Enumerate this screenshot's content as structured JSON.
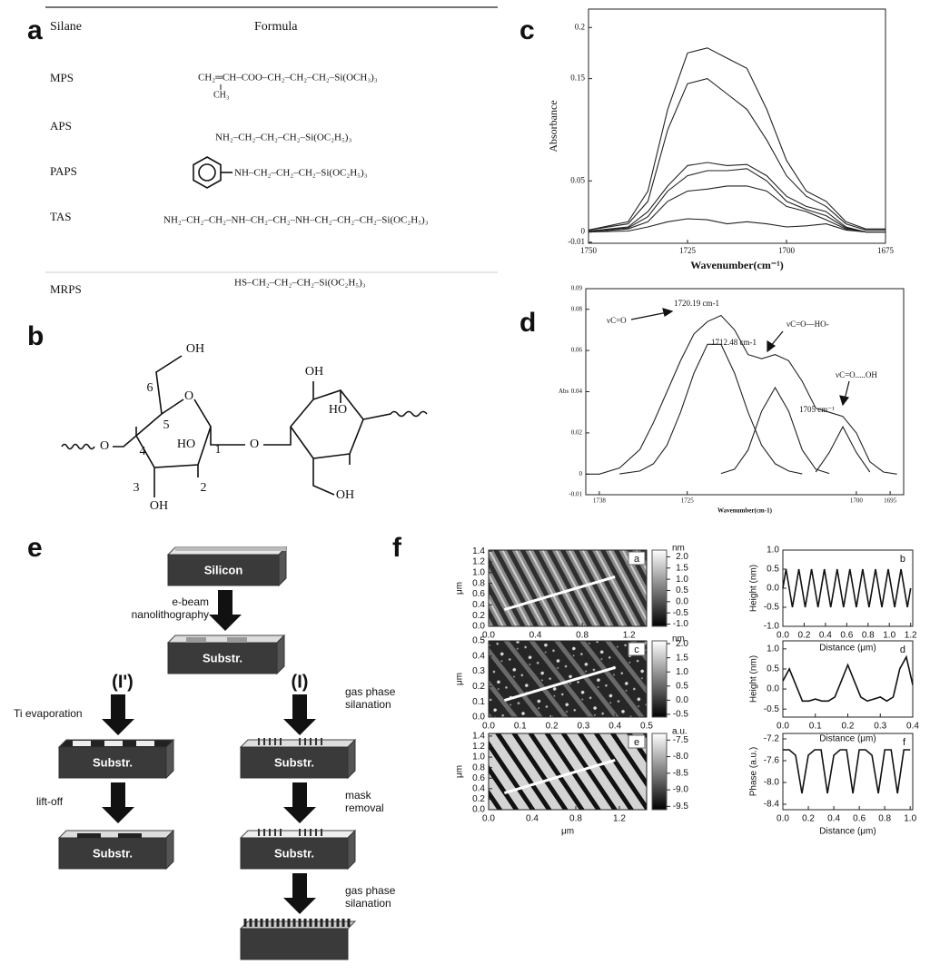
{
  "panel_labels": [
    "a",
    "b",
    "c",
    "d",
    "e",
    "f"
  ],
  "table": {
    "headers": [
      "Silane",
      "Formula"
    ],
    "rows": [
      [
        "MPS",
        "CH₂═CH–COO–CH₂–CH₂–CH₂–Si(OCH₃)₃"
      ],
      [
        "APS",
        "NH₂–CH₂–CH₂–CH₂–Si(OC₂H₅)₃"
      ],
      [
        "PAPS",
        "NH–CH₂–CH₂–CH₂–Si(OC₂H₅)₃"
      ],
      [
        "TAS",
        "NH₂–CH₂–CH₂–NH–CH₂–CH₂–NH–CH₂–CH₂–CH₂–Si(OC₂H₅)₃"
      ],
      [
        "MRPS",
        "HS–CH₂–CH₂–CH₂–Si(OC₂H₅)₃"
      ]
    ],
    "mps_branch": "CH₃"
  },
  "structure_labels": [
    "OH",
    "6",
    "5",
    "O",
    "4",
    "1",
    "HO",
    "3",
    "2",
    "OH",
    "O",
    "O",
    "OH",
    "HO",
    "OH"
  ],
  "process": {
    "start": "Silicon",
    "lithography": [
      "e-beam",
      "nanolithography"
    ],
    "route_left": "(I')",
    "route_right": "(I)",
    "ti_evaporation": "Ti evaporation",
    "silanation_1": [
      "gas phase",
      "silanation"
    ],
    "lift_off": "lift-off",
    "mask_removal": [
      "mask",
      "removal"
    ],
    "silanation_2": [
      "gas phase",
      "silanation"
    ],
    "substrates": [
      "Substr.",
      "Substr.",
      "Substr.",
      "Substr.",
      "Substr."
    ]
  },
  "chart_data": [
    {
      "type": "line",
      "ylabel": "Absorbance",
      "xlabel": "Wavenumber(cm⁻¹)",
      "x": [
        1750,
        1740,
        1735,
        1730,
        1725,
        1720,
        1715,
        1710,
        1705,
        1700,
        1695,
        1690,
        1685,
        1680,
        1675
      ],
      "xlim": [
        1750,
        1675
      ],
      "xticks": [
        1750,
        1725,
        1700,
        1675
      ],
      "ylim": [
        -0.011,
        0.218
      ],
      "yticks": [
        0.2,
        0.15,
        0.05,
        0,
        -0.01
      ],
      "series": [
        {
          "color": "#222",
          "values": [
            0.002,
            0.01,
            0.04,
            0.12,
            0.175,
            0.18,
            0.17,
            0.16,
            0.12,
            0.07,
            0.04,
            0.03,
            0.01,
            0.003,
            0.003
          ]
        },
        {
          "color": "#222",
          "values": [
            0.002,
            0.008,
            0.03,
            0.1,
            0.145,
            0.15,
            0.135,
            0.12,
            0.09,
            0.055,
            0.035,
            0.025,
            0.008,
            0.002,
            0.002
          ]
        },
        {
          "color": "#222",
          "values": [
            0.001,
            0.005,
            0.02,
            0.045,
            0.065,
            0.068,
            0.065,
            0.066,
            0.055,
            0.035,
            0.025,
            0.02,
            0.005,
            0,
            0
          ]
        },
        {
          "color": "#222",
          "values": [
            0.001,
            0.004,
            0.015,
            0.04,
            0.055,
            0.06,
            0.06,
            0.062,
            0.05,
            0.03,
            0.022,
            0.016,
            0.004,
            0,
            0
          ]
        },
        {
          "color": "#222",
          "values": [
            0,
            0.003,
            0.01,
            0.03,
            0.04,
            0.042,
            0.045,
            0.045,
            0.04,
            0.025,
            0.02,
            0.012,
            0.003,
            0,
            0
          ]
        },
        {
          "color": "#222",
          "values": [
            0,
            0.001,
            0.005,
            0.01,
            0.013,
            0.012,
            0.008,
            0.01,
            0.008,
            0.005,
            0.006,
            0.008,
            0.002,
            0,
            0
          ]
        }
      ]
    },
    {
      "type": "line",
      "ylabel": "Abs",
      "xlabel": "Wavenumber(cm-1)",
      "annotations": [
        "1720.19 cm-1",
        "1712.48 cm-1",
        "1705 cm⁻¹",
        "νC=O",
        "νC=O—HO-",
        "νC=O.....OH"
      ],
      "x": [
        1740,
        1738,
        1735,
        1732,
        1730,
        1728,
        1726,
        1724,
        1722,
        1720,
        1718,
        1716,
        1714,
        1712,
        1710,
        1708,
        1706,
        1704,
        1702,
        1700,
        1698,
        1696,
        1694
      ],
      "xlim": [
        1740,
        1693
      ],
      "xticks": [
        1738,
        1725,
        1700,
        1695
      ],
      "ylim": [
        -0.01,
        0.09
      ],
      "yticks": [
        0.09,
        0.08,
        0.06,
        0.04,
        0.02,
        0,
        -0.01
      ],
      "series": [
        {
          "color": "#222",
          "values": [
            0.0,
            0.0,
            0.003,
            0.012,
            0.025,
            0.04,
            0.055,
            0.068,
            0.074,
            0.077,
            0.07,
            0.058,
            0.056,
            0.058,
            0.055,
            0.045,
            0.032,
            0.03,
            0.028,
            0.02,
            0.006,
            0.001,
            0.0
          ]
        },
        {
          "color": "#222",
          "values": [
            null,
            null,
            0.0001,
            0.0015,
            0.005,
            0.014,
            0.03,
            0.049,
            0.063,
            0.063,
            0.049,
            0.03,
            0.014,
            0.005,
            0.0015,
            0.0001,
            null,
            null,
            null,
            null,
            null,
            null,
            null
          ]
        },
        {
          "color": "#222",
          "values": [
            null,
            null,
            null,
            null,
            null,
            null,
            null,
            null,
            null,
            0.0003,
            0.0024,
            0.0117,
            0.0305,
            0.042,
            0.0305,
            0.0117,
            0.0024,
            0.0003,
            null,
            null,
            null,
            null,
            null
          ]
        },
        {
          "color": "#222",
          "values": [
            null,
            null,
            null,
            null,
            null,
            null,
            null,
            null,
            null,
            null,
            null,
            null,
            null,
            null,
            null,
            null,
            0.001,
            0.0105,
            0.023,
            0.0105,
            0.001,
            null,
            null
          ]
        }
      ]
    },
    {
      "type": "image",
      "panel": "a",
      "ylabel": "μm",
      "xlabel": "μm",
      "xlim": [
        0,
        1.35
      ],
      "ylim": [
        0,
        1.42
      ],
      "xticks": [
        {
          "value": 0,
          "label": "0.0"
        },
        0.4,
        0.8,
        1.2
      ],
      "yticks": [
        {
          "value": 0,
          "label": "0.0"
        },
        0.2,
        0.4,
        0.6,
        0.8,
        {
          "value": 1,
          "label": "1.0"
        },
        1.2,
        1.4
      ],
      "colorbar": {
        "label": "nm",
        "lim": [
          -1.1,
          2.3
        ],
        "ticks": [
          {
            "value": 2,
            "label": "2.0"
          },
          1.5,
          {
            "value": 1,
            "label": "1.0"
          },
          0.5,
          {
            "value": 0,
            "label": "0.0"
          },
          -0.5,
          {
            "value": -1,
            "label": "-1.0"
          }
        ]
      }
    },
    {
      "type": "line",
      "panel": "b",
      "ylabel": "Height (nm)",
      "xlabel": "Distance (μm)",
      "x": [
        0,
        0.03,
        0.06,
        0.09,
        0.12,
        0.15,
        0.18,
        0.21,
        0.24,
        0.27,
        0.3,
        0.33,
        0.36,
        0.39,
        0.42,
        0.45,
        0.48,
        0.51,
        0.54,
        0.57,
        0.6,
        0.63,
        0.66,
        0.69,
        0.72,
        0.75,
        0.78,
        0.81,
        0.84,
        0.87,
        0.9,
        0.93,
        0.96,
        0.99,
        1.02,
        1.05,
        1.08,
        1.11,
        1.14,
        1.17,
        1.2
      ],
      "xlim": [
        0,
        1.22
      ],
      "ylim": [
        -1.0,
        1.0
      ],
      "xticks": [
        {
          "value": 0,
          "label": "0.0"
        },
        0.2,
        0.4,
        0.6,
        0.8,
        {
          "value": 1,
          "label": "1.0"
        },
        1.2
      ],
      "yticks": [
        {
          "value": 1,
          "label": "1.0"
        },
        0.5,
        {
          "value": 0,
          "label": "0.0"
        },
        -0.5,
        {
          "value": -1,
          "label": "-1.0"
        }
      ],
      "series": [
        {
          "color": "#111",
          "values": [
            0,
            0.5,
            0,
            -0.5,
            0,
            0.5,
            0,
            -0.5,
            0,
            0.5,
            0,
            -0.5,
            0,
            0.5,
            0,
            -0.5,
            0,
            0.5,
            0,
            -0.5,
            0,
            0.5,
            0,
            -0.5,
            0,
            0.5,
            0,
            -0.5,
            0,
            0.5,
            0,
            -0.5,
            0,
            0.5,
            0,
            -0.5,
            0,
            0.5,
            0,
            -0.5,
            0
          ]
        }
      ]
    },
    {
      "type": "image",
      "panel": "c",
      "ylabel": "μm",
      "xlabel": "μm",
      "xlim": [
        0,
        0.5
      ],
      "ylim": [
        0,
        0.5
      ],
      "xticks": [
        {
          "value": 0,
          "label": "0.0"
        },
        0.1,
        0.2,
        0.3,
        0.4,
        0.5
      ],
      "yticks": [
        {
          "value": 0,
          "label": "0.0"
        },
        0.1,
        0.2,
        0.3,
        0.4,
        0.5
      ],
      "colorbar": {
        "label": "nm",
        "lim": [
          -0.6,
          2.1
        ],
        "ticks": [
          {
            "value": 2,
            "label": "2.0"
          },
          1.5,
          {
            "value": 1,
            "label": "1.0"
          },
          0.5,
          {
            "value": 0,
            "label": "0.0"
          },
          -0.5
        ]
      }
    },
    {
      "type": "line",
      "panel": "d",
      "ylabel": "Height (nm)",
      "xlabel": "Distance (μm)",
      "x": [
        0,
        0.02,
        0.04,
        0.06,
        0.08,
        0.1,
        0.12,
        0.14,
        0.16,
        0.18,
        0.2,
        0.22,
        0.24,
        0.26,
        0.28,
        0.3,
        0.32,
        0.34,
        0.36,
        0.38,
        0.4
      ],
      "xlim": [
        0,
        0.4
      ],
      "ylim": [
        -0.7,
        1.2
      ],
      "xticks": [
        {
          "value": 0,
          "label": "0.0"
        },
        0.1,
        0.2,
        0.3,
        0.4
      ],
      "yticks": [
        {
          "value": 1,
          "label": "1.0"
        },
        0.5,
        {
          "value": 0,
          "label": "0.0"
        },
        -0.5
      ],
      "series": [
        {
          "color": "#111",
          "values": [
            0.2,
            0.5,
            0.1,
            -0.3,
            -0.3,
            -0.25,
            -0.3,
            -0.3,
            -0.2,
            0.2,
            0.6,
            0.2,
            -0.2,
            -0.3,
            -0.25,
            -0.2,
            -0.3,
            -0.2,
            0.5,
            0.8,
            0.1
          ]
        }
      ]
    },
    {
      "type": "image",
      "panel": "e",
      "ylabel": "μm",
      "xlabel": "μm",
      "xlim": [
        0,
        1.45
      ],
      "ylim": [
        0,
        1.45
      ],
      "xticks": [
        {
          "value": 0,
          "label": "0.0"
        },
        0.4,
        0.8,
        1.2
      ],
      "yticks": [
        {
          "value": 0,
          "label": "0.0"
        },
        0.2,
        0.4,
        0.6,
        0.8,
        {
          "value": 1,
          "label": "1.0"
        },
        1.2,
        1.4
      ],
      "colorbar": {
        "label": "a.u.",
        "lim": [
          -9.6,
          -7.3
        ],
        "ticks": [
          -7.5,
          {
            "value": -8,
            "label": "-8.0"
          },
          -8.5,
          {
            "value": -9,
            "label": "-9.0"
          },
          -9.5
        ]
      }
    },
    {
      "type": "line",
      "panel": "f",
      "ylabel": "Phase (a.u.)",
      "xlabel": "Distance (μm)",
      "x": [
        0,
        0.05,
        0.1,
        0.15,
        0.2,
        0.25,
        0.3,
        0.35,
        0.4,
        0.45,
        0.5,
        0.55,
        0.6,
        0.65,
        0.7,
        0.75,
        0.8,
        0.85,
        0.9,
        0.95,
        1.0
      ],
      "xlim": [
        0,
        1.02
      ],
      "ylim": [
        -8.5,
        -7.1
      ],
      "xticks": [
        {
          "value": 0,
          "label": "0.0"
        },
        0.2,
        0.4,
        0.6,
        0.8,
        {
          "value": 1,
          "label": "1.0"
        }
      ],
      "yticks": [
        -7.2,
        -7.6,
        {
          "value": -8,
          "label": "-8.0"
        },
        -8.4
      ],
      "series": [
        {
          "color": "#111",
          "values": [
            -7.4,
            -7.4,
            -7.5,
            -8.2,
            -7.5,
            -7.4,
            -7.4,
            -8.2,
            -7.5,
            -7.4,
            -7.4,
            -8.2,
            -7.4,
            -7.4,
            -7.5,
            -8.2,
            -7.4,
            -7.4,
            -8.2,
            -7.4,
            -7.4
          ]
        }
      ]
    }
  ]
}
